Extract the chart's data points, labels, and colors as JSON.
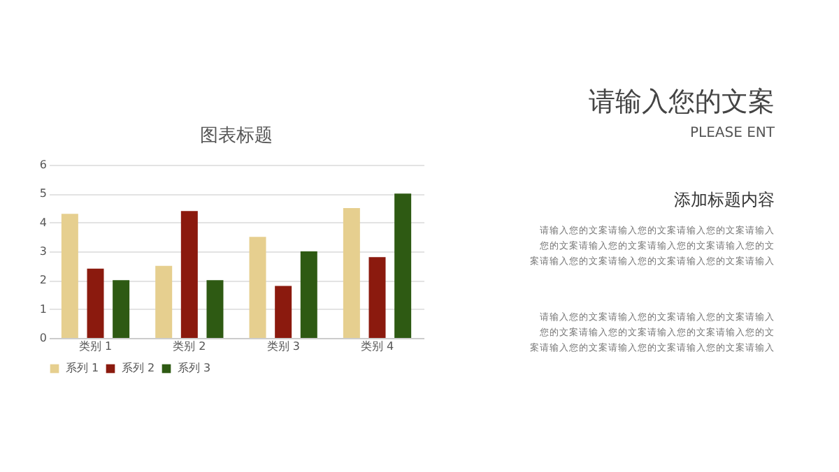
{
  "chart_data": [
    {
      "type": "bar",
      "title": "图表标题",
      "categories": [
        "类别 1",
        "类别 2",
        "类别 3",
        "类别 4"
      ],
      "series": [
        {
          "name": "系列 1",
          "color": "#e6cf8f",
          "values": [
            4.3,
            2.5,
            3.5,
            4.5
          ]
        },
        {
          "name": "系列 2",
          "color": "#8b1a0e",
          "values": [
            2.4,
            4.4,
            1.8,
            2.8
          ]
        },
        {
          "name": "系列 3",
          "color": "#2e5a13",
          "values": [
            2,
            2,
            3,
            5
          ]
        }
      ],
      "ylim": [
        0,
        6
      ],
      "yticks": [
        0,
        1,
        2,
        3,
        4,
        5,
        6
      ],
      "grid": "y",
      "legend": "bottom"
    },
    {
      "type": "other",
      "title": "请输入您的文案",
      "subtitle": "PLEASE ENT",
      "annotations": [
        "添加标题内容",
        "请输入您的文案请输入您的文案请输入您的文案请输入",
        "您的文案请输入您的文案请输入您的文案请输入您的文",
        "案请输入您的文案请输入您的文案请输入您的文案请输入",
        "请输入您的文案请输入您的文案请输入您的文案请输入",
        "您的文案请输入您的文案请输入您的文案请输入您的文",
        "案请输入您的文案请输入您的文案请输入您的文案请输入"
      ]
    }
  ]
}
